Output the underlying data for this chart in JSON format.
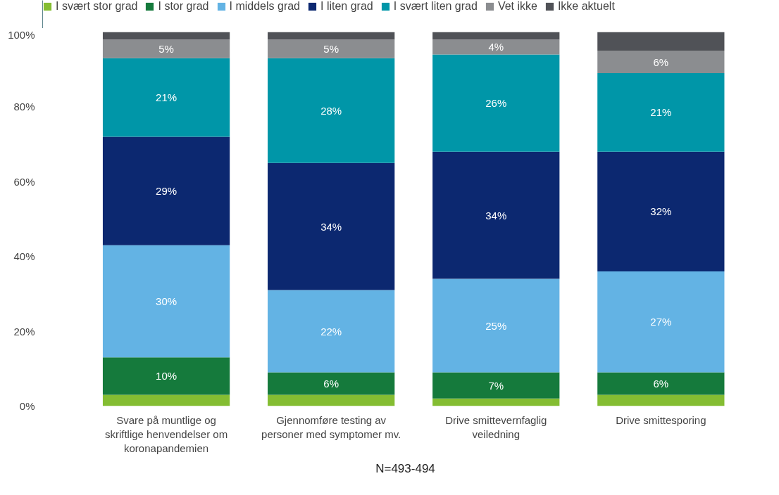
{
  "chart_data": {
    "type": "bar",
    "stacked": true,
    "categories": [
      "Svare på muntlige og skriftlige henvendelser om koronapandemien",
      "Gjennomføre testing av personer med symptomer mv.",
      "Drive smittevernfaglig veiledning",
      "Drive smittesporing"
    ],
    "series": [
      {
        "name": "I svært stor grad",
        "color": "#84bd32",
        "values": [
          3,
          3,
          2,
          3
        ],
        "value_labels": [
          null,
          null,
          null,
          null
        ]
      },
      {
        "name": "I stor grad",
        "color": "#157a3c",
        "values": [
          10,
          6,
          7,
          6
        ],
        "value_labels": [
          "10%",
          "6%",
          "7%",
          "6%"
        ]
      },
      {
        "name": "I middels grad",
        "color": "#63b3e4",
        "values": [
          30,
          22,
          25,
          27
        ],
        "value_labels": [
          "30%",
          "22%",
          "25%",
          "27%"
        ]
      },
      {
        "name": "I liten grad",
        "color": "#0c2870",
        "values": [
          29,
          34,
          34,
          32
        ],
        "value_labels": [
          "29%",
          "34%",
          "34%",
          "32%"
        ]
      },
      {
        "name": "I svært liten grad",
        "color": "#0096a8",
        "values": [
          21,
          28,
          26,
          21
        ],
        "value_labels": [
          "21%",
          "28%",
          "26%",
          "21%"
        ]
      },
      {
        "name": "Vet ikke",
        "color": "#8b8d90",
        "values": [
          5,
          5,
          4,
          6
        ],
        "value_labels": [
          "5%",
          "5%",
          "4%",
          "6%"
        ]
      },
      {
        "name": "Ikke aktuelt",
        "color": "#505257",
        "values": [
          2,
          2,
          2,
          5
        ],
        "value_labels": [
          null,
          null,
          null,
          null
        ]
      }
    ],
    "ylim": [
      0,
      100
    ],
    "yticks": [
      {
        "value": 0,
        "label": "0%"
      },
      {
        "value": 20,
        "label": "20%"
      },
      {
        "value": 40,
        "label": "40%"
      },
      {
        "value": 60,
        "label": "60%"
      },
      {
        "value": 80,
        "label": "80%"
      },
      {
        "value": 100,
        "label": "100%"
      }
    ],
    "grid": false,
    "legend": "top left",
    "annotations": [
      "N=493-494"
    ]
  }
}
